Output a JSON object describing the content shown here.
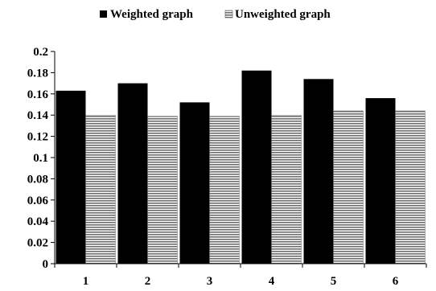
{
  "chart_data": {
    "type": "bar",
    "title": "",
    "xlabel": "",
    "ylabel": "",
    "categories": [
      "1",
      "2",
      "3",
      "4",
      "5",
      "6"
    ],
    "series": [
      {
        "name": "Weighted graph",
        "values": [
          0.163,
          0.17,
          0.152,
          0.182,
          0.174,
          0.156
        ],
        "color": "#000000",
        "fill": "solid"
      },
      {
        "name": "Unweighted graph",
        "values": [
          0.14,
          0.139,
          0.139,
          0.14,
          0.144,
          0.144
        ],
        "color": "#808080",
        "fill": "horizontal-stripes"
      }
    ],
    "ylim": [
      0,
      0.2
    ],
    "yticks": [
      "0",
      "0.02",
      "0.04",
      "0.06",
      "0.08",
      "0.1",
      "0.12",
      "0.14",
      "0.16",
      "0.18",
      "0.2"
    ],
    "grid": false,
    "legend_position": "top-center"
  }
}
